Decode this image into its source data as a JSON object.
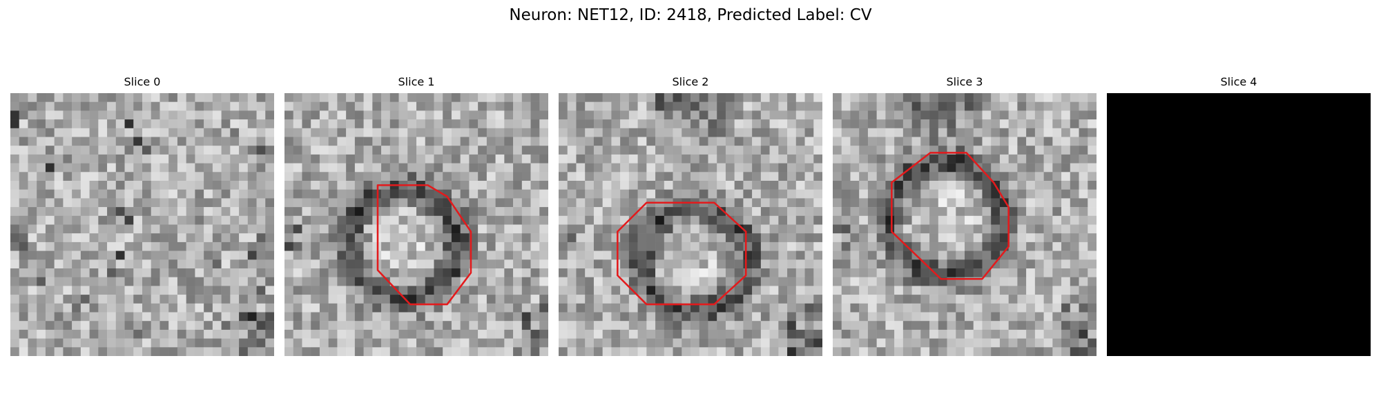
{
  "figure": {
    "title": "Neuron: NET12, ID: 2418, Predicted Label: CV"
  },
  "panels": [
    {
      "title": "Slice 0",
      "kind": "em-noise",
      "seed": 11,
      "contour": false
    },
    {
      "title": "Slice 1",
      "kind": "em-ring",
      "seed": 23,
      "contour": true
    },
    {
      "title": "Slice 2",
      "kind": "em-ring",
      "seed": 37,
      "contour": true
    },
    {
      "title": "Slice 3",
      "kind": "em-ring",
      "seed": 51,
      "contour": true
    },
    {
      "title": "Slice 4",
      "kind": "blank",
      "seed": 0,
      "contour": false
    }
  ],
  "colors": {
    "contour": "#e31a1c",
    "blank": "#000000"
  }
}
